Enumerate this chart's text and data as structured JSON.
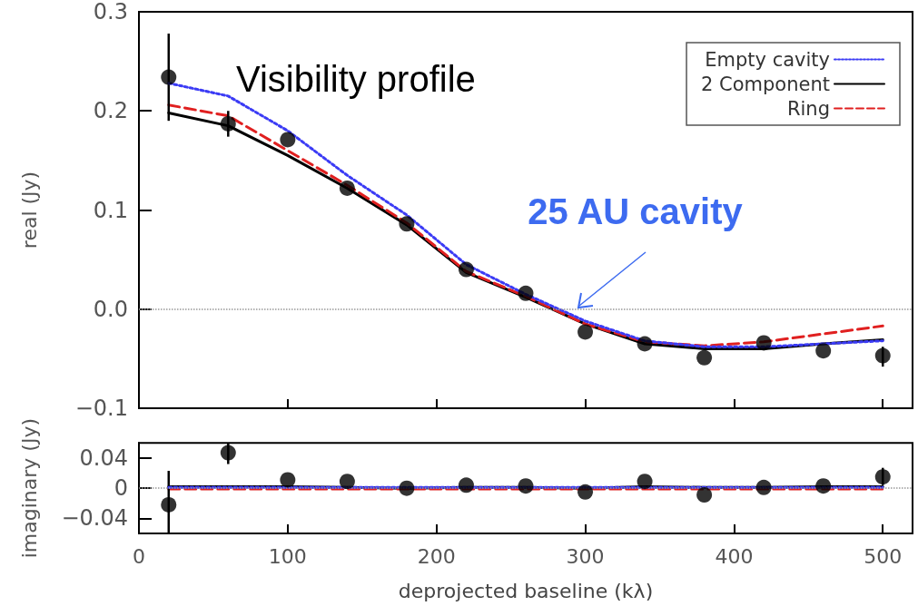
{
  "chart_data": [
    {
      "type": "line",
      "title": "Visibility profile",
      "ylabel": "real (Jy)",
      "x": [
        20,
        60,
        100,
        140,
        180,
        220,
        260,
        300,
        340,
        380,
        420,
        460,
        500
      ],
      "xlim": [
        0,
        520
      ],
      "xticks": [
        0,
        100,
        200,
        300,
        400,
        500
      ],
      "ylim": [
        -0.1,
        0.3
      ],
      "yticks": [
        {
          "value": -0.1,
          "label": "−0.1"
        },
        {
          "value": 0,
          "label": "0.0"
        },
        0.1,
        0.2,
        0.3
      ],
      "tick_labels": "y",
      "legend": "top right",
      "series": [
        {
          "type": "scatter",
          "color": "#000000",
          "marker": "circle",
          "values": [
            0.234,
            0.187,
            0.171,
            0.122,
            0.086,
            0.04,
            0.016,
            -0.023,
            -0.035,
            -0.049,
            -0.034,
            -0.042,
            -0.047
          ],
          "errors": [
            [
              0.19,
              0.278
            ],
            [
              0.174,
              0.2
            ],
            null,
            null,
            null,
            null,
            null,
            null,
            null,
            null,
            null,
            null,
            [
              -0.058,
              -0.038
            ]
          ]
        },
        {
          "name": "Empty cavity",
          "color": "#3b3bf5",
          "line_style": "dotted",
          "marker": "none",
          "values": [
            0.228,
            0.215,
            0.18,
            0.135,
            0.095,
            0.045,
            0.015,
            -0.012,
            -0.032,
            -0.038,
            -0.038,
            -0.035,
            -0.032
          ]
        },
        {
          "name": "2 Component",
          "color": "#000000",
          "line_style": "solid",
          "marker": "none",
          "values": [
            0.198,
            0.185,
            0.155,
            0.122,
            0.085,
            0.037,
            0.012,
            -0.015,
            -0.035,
            -0.04,
            -0.04,
            -0.035,
            -0.031
          ]
        },
        {
          "name": "Ring",
          "color": "#e02020",
          "line_style": "dashed",
          "marker": "none",
          "values": [
            0.206,
            0.195,
            0.16,
            0.125,
            0.087,
            0.038,
            0.013,
            -0.015,
            -0.033,
            -0.037,
            -0.033,
            -0.025,
            -0.017
          ]
        }
      ],
      "ref_lines": [
        {
          "axis": "y",
          "value": 0,
          "color": "#999999",
          "line_style": "dotted"
        }
      ],
      "annotations": [
        {
          "text": "25 AU cavity",
          "x": 295,
          "y": 0
        }
      ]
    },
    {
      "type": "line",
      "ylabel": "imaginary (Jy)",
      "xlabel": "deprojected baseline (kλ)",
      "x": [
        20,
        60,
        100,
        140,
        180,
        220,
        260,
        300,
        340,
        380,
        420,
        460,
        500
      ],
      "xlim": [
        0,
        520
      ],
      "xticks": [
        0,
        100,
        200,
        300,
        400,
        500
      ],
      "ylim": [
        -0.06,
        0.06
      ],
      "yticks": [
        {
          "value": -0.04,
          "label": "−0.04"
        },
        0,
        0.04
      ],
      "series": [
        {
          "type": "scatter",
          "color": "#000000",
          "marker": "circle",
          "values": [
            -0.022,
            0.047,
            0.011,
            0.009,
            0,
            0.004,
            0.003,
            -0.005,
            0.009,
            -0.009,
            0.001,
            0.003,
            0.015
          ],
          "errors": [
            [
              -0.06,
              0.023
            ],
            [
              0.032,
              0.06
            ],
            null,
            null,
            null,
            null,
            null,
            null,
            null,
            null,
            null,
            null,
            [
              0.004,
              0.027
            ]
          ]
        },
        {
          "color": "#3b3bf5",
          "line_style": "dotted",
          "marker": "none",
          "values": [
            0.001,
            0.001,
            0.001,
            0.001,
            0.001,
            0.001,
            0.001,
            0.001,
            0.001,
            0.001,
            0.001,
            0.001,
            0.001
          ]
        },
        {
          "color": "#000000",
          "line_style": "solid",
          "marker": "none",
          "values": [
            0.002,
            0.002,
            0.002,
            0.001,
            0,
            0.001,
            0.001,
            0,
            0.002,
            0.001,
            0.001,
            0.002,
            0.002
          ]
        },
        {
          "color": "#e02020",
          "line_style": "dashed",
          "marker": "none",
          "values": [
            -0.001,
            -0.001,
            -0.001,
            -0.001,
            -0.001,
            -0.001,
            -0.001,
            -0.001,
            -0.001,
            -0.001,
            -0.001,
            -0.001,
            -0.001
          ]
        }
      ],
      "ref_lines": [
        {
          "axis": "y",
          "value": 0,
          "color": "#999999",
          "line_style": "dotted"
        }
      ]
    }
  ]
}
